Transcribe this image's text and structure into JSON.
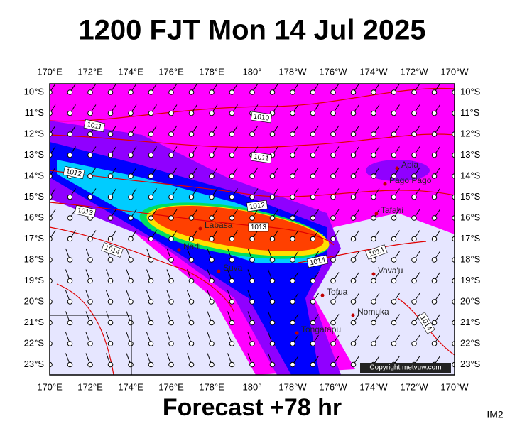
{
  "header": {
    "title": "1200 FJT Mon 14 Jul 2025"
  },
  "axes": {
    "lon_labels": [
      "170°E",
      "172°E",
      "174°E",
      "176°E",
      "178°E",
      "180°",
      "178°W",
      "176°W",
      "174°W",
      "172°W",
      "170°W"
    ],
    "lat_labels": [
      "10°S",
      "11°S",
      "12°S",
      "13°S",
      "14°S",
      "15°S",
      "16°S",
      "17°S",
      "18°S",
      "19°S",
      "20°S",
      "21°S",
      "22°S",
      "23°S"
    ]
  },
  "places": [
    "Apia",
    "Pago Pago",
    "Tafahi",
    "Labasa",
    "Nadi",
    "Suva",
    "Vava'u",
    "Tofua",
    "Nomuka",
    "Tongatapu"
  ],
  "isobar_labels": [
    "1011",
    "1010",
    "1011",
    "1012",
    "1012",
    "1013",
    "1013",
    "1014",
    "1014",
    "1014",
    "1014"
  ],
  "copyright": "Copyright metvuw.com",
  "footer": {
    "forecast": "Forecast +78 hr",
    "code": "IM2"
  }
}
